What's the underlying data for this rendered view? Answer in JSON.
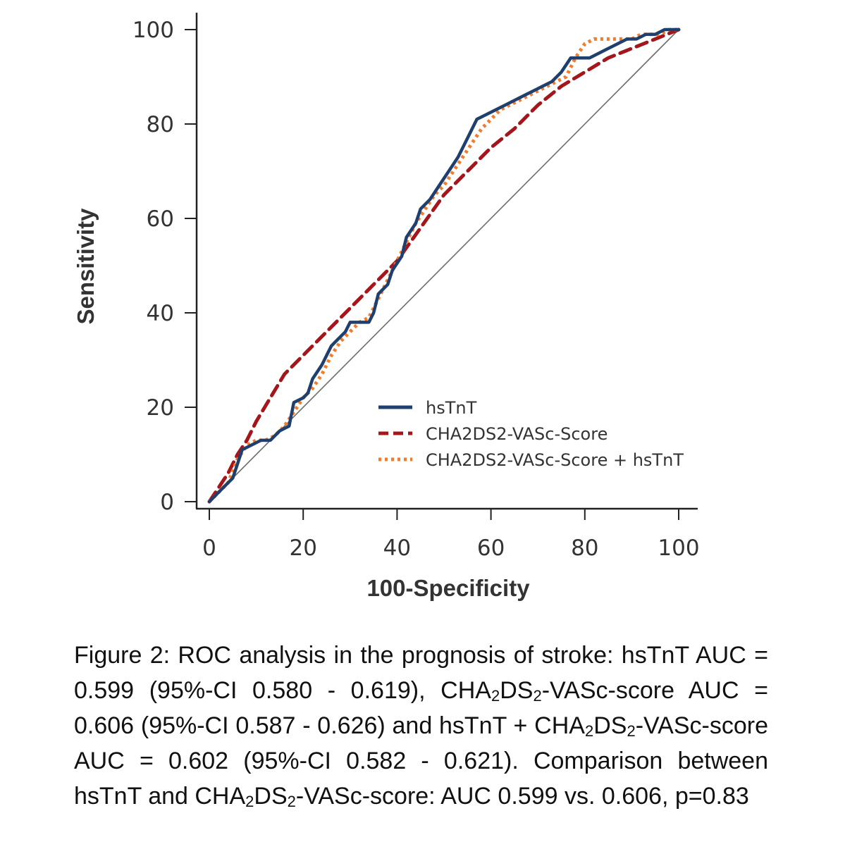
{
  "chart_data": {
    "type": "line",
    "xlabel": "100-Specificity",
    "ylabel": "Sensitivity",
    "xlim": [
      0,
      100
    ],
    "ylim": [
      0,
      100
    ],
    "xticks": [
      "0",
      "20",
      "40",
      "60",
      "80",
      "100"
    ],
    "yticks": [
      "0",
      "20",
      "40",
      "60",
      "80",
      "100"
    ],
    "grid": false,
    "legend_position": "bottom-right",
    "reference_line": {
      "x": [
        0,
        100
      ],
      "y": [
        0,
        100
      ],
      "color": "#6d6d6d"
    },
    "series": [
      {
        "name": "hsTnT",
        "color": "#1f3f6e",
        "style": "solid",
        "x": [
          0,
          2,
          4,
          5,
          6,
          7,
          9,
          11,
          13,
          15,
          17,
          18,
          20,
          21,
          22,
          24,
          25,
          26,
          27,
          29,
          30,
          32,
          34,
          35,
          36,
          38,
          39,
          41,
          42,
          44,
          45,
          47,
          49,
          51,
          53,
          55,
          57,
          59,
          61,
          63,
          65,
          67,
          69,
          71,
          73,
          75,
          77,
          79,
          81,
          83,
          85,
          87,
          89,
          91,
          93,
          95,
          97,
          99,
          100
        ],
        "y": [
          0,
          2,
          4,
          5,
          8,
          11,
          12,
          13,
          13,
          15,
          16,
          21,
          22,
          23,
          26,
          29,
          31,
          33,
          34,
          36,
          38,
          38,
          38,
          40,
          44,
          46,
          49,
          52,
          56,
          59,
          62,
          64,
          67,
          70,
          73,
          77,
          81,
          82,
          83,
          84,
          85,
          86,
          87,
          88,
          89,
          91,
          94,
          94,
          94,
          95,
          96,
          97,
          98,
          98,
          99,
          99,
          100,
          100,
          100
        ]
      },
      {
        "name": "CHA2DS2-VASc-Score",
        "color": "#a3171c",
        "style": "dashed",
        "x": [
          0,
          2,
          4,
          6,
          8,
          10,
          13,
          16,
          20,
          25,
          30,
          35,
          40,
          45,
          50,
          55,
          60,
          65,
          70,
          75,
          80,
          85,
          90,
          95,
          100
        ],
        "y": [
          0,
          3,
          6,
          10,
          13,
          17,
          22,
          27,
          31,
          36,
          41,
          46,
          51,
          58,
          65,
          70,
          75,
          79,
          84,
          88,
          91,
          94,
          96,
          98,
          100
        ]
      },
      {
        "name": "CHA2DS2-VASc-Score + hsTnT",
        "color": "#f07c2c",
        "style": "dotted",
        "x": [
          0,
          2,
          4,
          6,
          8,
          10,
          12,
          14,
          16,
          18,
          20,
          22,
          24,
          26,
          28,
          30,
          32,
          34,
          36,
          38,
          40,
          42,
          44,
          46,
          48,
          50,
          52,
          54,
          56,
          58,
          60,
          62,
          64,
          66,
          68,
          70,
          72,
          74,
          76,
          78,
          80,
          82,
          84,
          86,
          88,
          90,
          92,
          94,
          96,
          98,
          100
        ],
        "y": [
          0,
          2,
          4,
          9,
          12,
          13,
          13,
          14,
          16,
          19,
          22,
          24,
          27,
          31,
          34,
          36,
          38,
          39,
          43,
          47,
          51,
          55,
          59,
          62,
          65,
          67,
          70,
          73,
          76,
          79,
          81,
          83,
          84,
          85,
          86,
          87,
          88,
          89,
          90,
          94,
          97,
          98,
          98,
          98,
          98,
          98,
          99,
          99,
          99,
          100,
          100
        ]
      }
    ]
  },
  "caption": {
    "p1": "Figure 2: ROC analysis in the prognosis of stroke: hsTnT AUC = 0.599 (95%-CI 0.580 - 0.619), CHA",
    "s1": "2",
    "p2": "DS",
    "s2": "2",
    "p3": "-VASc-score AUC = 0.606 (95%-CI 0.587 - 0.626) and hsTnT + CHA",
    "s3": "2",
    "p4": "DS",
    "s4": "2",
    "p5": "-VASc-score AUC = 0.602 (95%-CI 0.582 - 0.621). Comparison between hsTnT and CHA",
    "s5": "2",
    "p6": "DS",
    "s6": "2",
    "p7": "-VASc-score: AUC 0.599 vs. 0.606, p=0.83"
  }
}
